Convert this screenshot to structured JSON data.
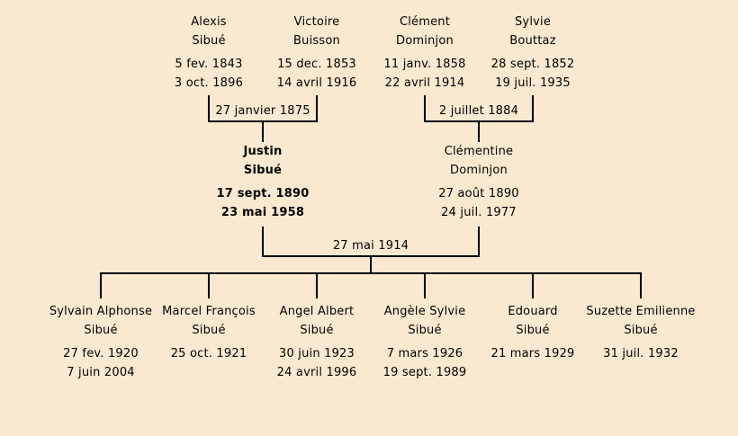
{
  "canvas": {
    "background_color": "#fae9d0",
    "line_color": "#000000",
    "text_color": "#000000"
  },
  "tree": {
    "grandparents": [
      {
        "given": "Alexis",
        "surname": "Sibué",
        "birth_date": "5 fev. 1843",
        "death_date": "3 oct. 1896"
      },
      {
        "given": "Victoire",
        "surname": "Buisson",
        "birth_date": "15 dec. 1853",
        "death_date": "14 avril 1916"
      },
      {
        "given": "Clément",
        "surname": "Dominjon",
        "birth_date": "11 janv. 1858",
        "death_date": "22 avril 1914"
      },
      {
        "given": "Sylvie",
        "surname": "Bouttaz",
        "birth_date": "28 sept. 1852",
        "death_date": "19 juil. 1935"
      }
    ],
    "marriages": {
      "paternal_grandparents": {
        "date": "27 janvier 1875"
      },
      "maternal_grandparents": {
        "date": "2 juillet 1884"
      },
      "parents": {
        "date": "27 mai 1914"
      }
    },
    "parents": [
      {
        "given": "Justin",
        "surname": "Sibué",
        "birth_date": "17 sept. 1890",
        "death_date": "23 mai 1958"
      },
      {
        "given": "Clémentine",
        "surname": "Dominjon",
        "birth_date": "27 août 1890",
        "death_date": "24 juil. 1977"
      }
    ],
    "children": [
      {
        "given": "Sylvain Alphonse",
        "surname": "Sibué",
        "birth_date": "27 fev. 1920",
        "death_date": "7 juin 2004"
      },
      {
        "given": "Marcel François",
        "surname": "Sibué",
        "birth_date": "25 oct. 1921",
        "death_date": ""
      },
      {
        "given": "Angel Albert",
        "surname": "Sibué",
        "birth_date": "30 juin 1923",
        "death_date": "24 avril 1996"
      },
      {
        "given": "Angèle Sylvie",
        "surname": "Sibué",
        "birth_date": "7 mars 1926",
        "death_date": "19 sept. 1989"
      },
      {
        "given": "Edouard",
        "surname": "Sibué",
        "birth_date": "21 mars 1929",
        "death_date": ""
      },
      {
        "given": "Suzette Emilienne",
        "surname": "Sibué",
        "birth_date": "31 juil. 1932",
        "death_date": ""
      }
    ]
  }
}
